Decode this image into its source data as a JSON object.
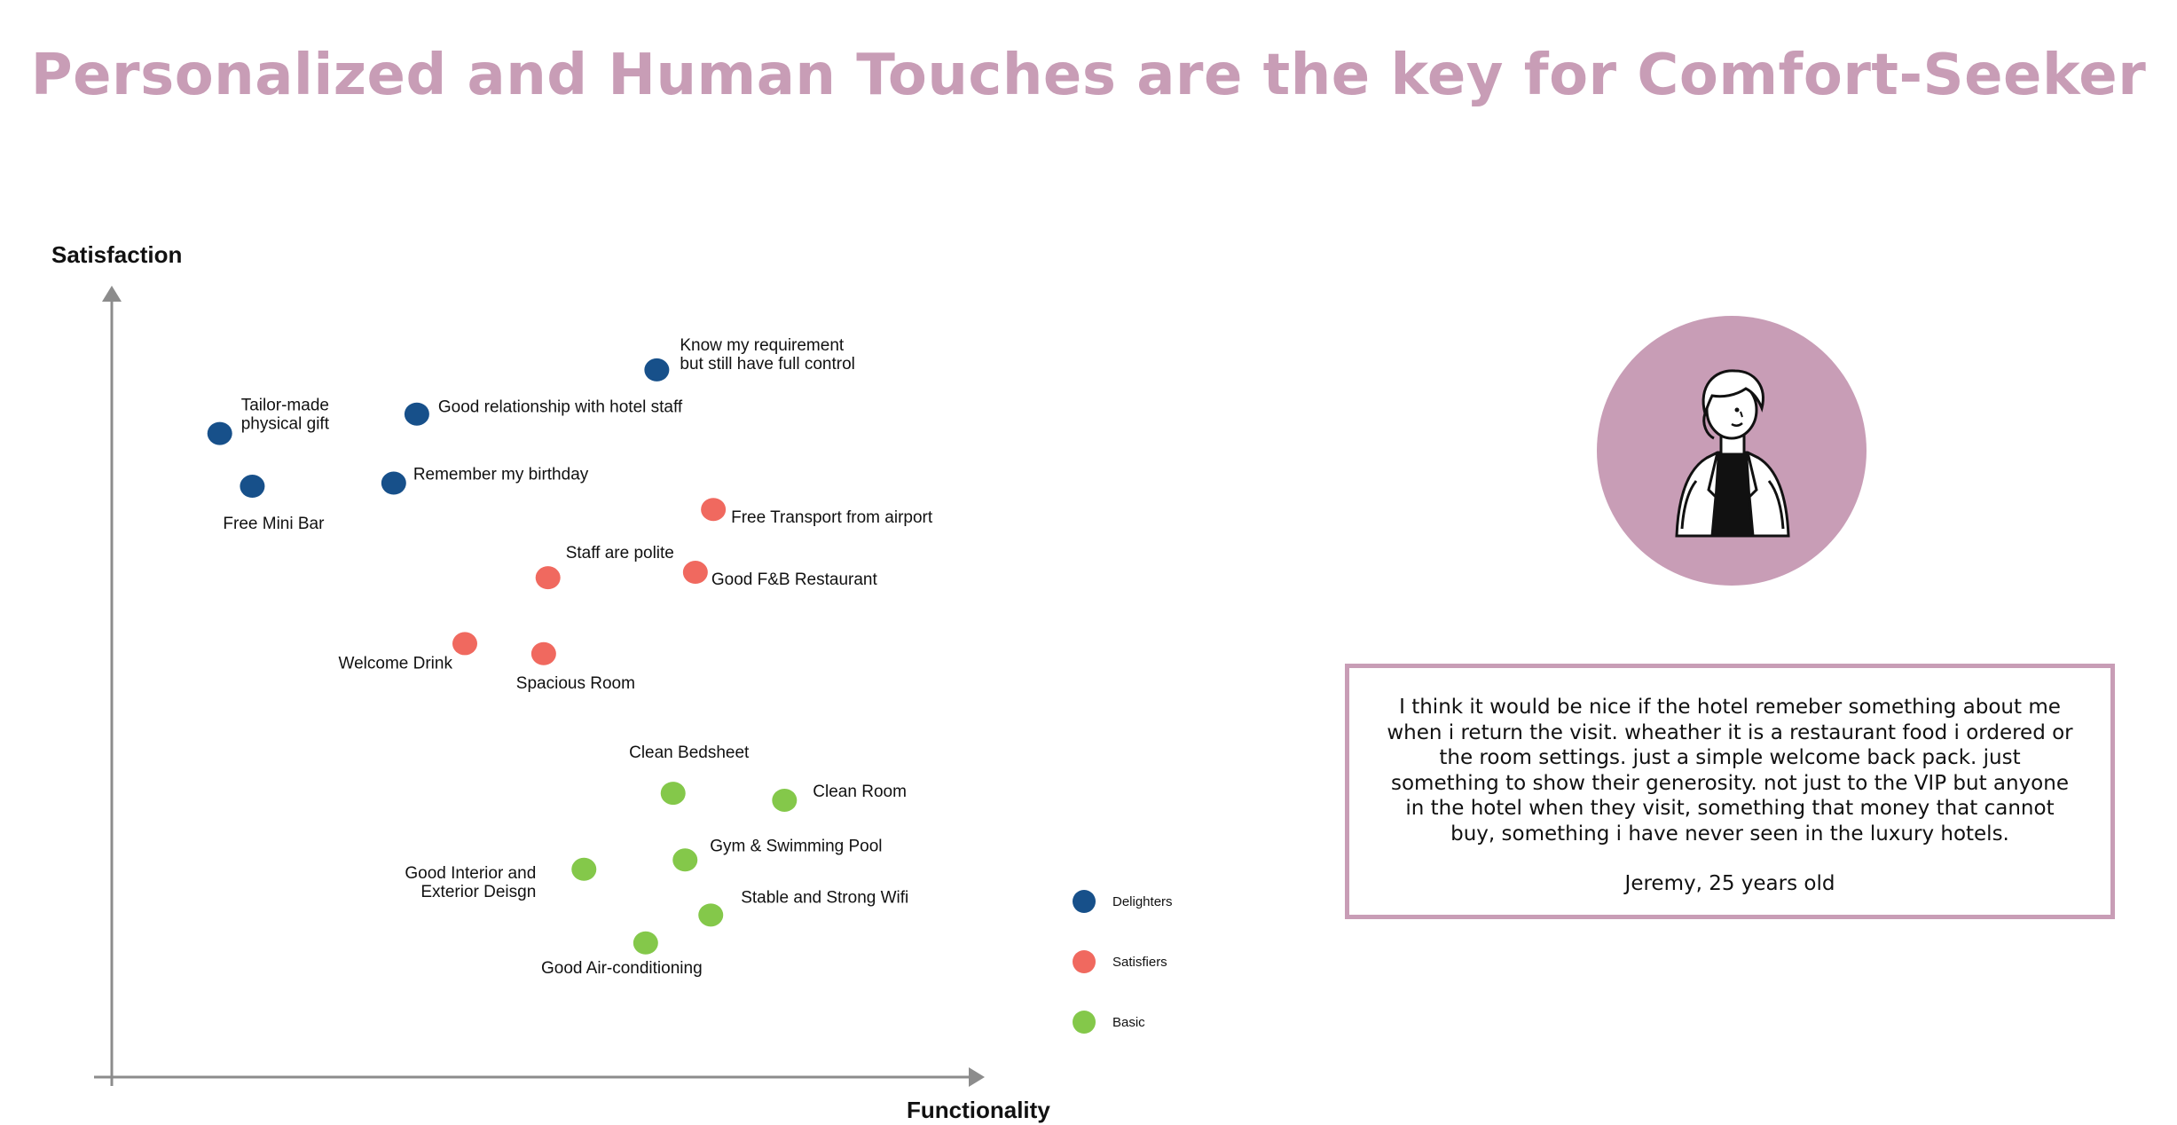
{
  "title": "Personalized and Human Touches are the key for Comfort-Seeker",
  "chart_data": {
    "type": "scatter",
    "title": "Personalized and Human Touches are the key for Comfort-Seeker",
    "xlabel": "Functionality",
    "ylabel": "Satisfaction",
    "xlim": [
      0,
      100
    ],
    "ylim": [
      0,
      100
    ],
    "grid": false,
    "legend_position": "bottom-right",
    "colors": {
      "Delighters": "#17508a",
      "Satisfiers": "#f0695f",
      "Basic": "#84c84a"
    },
    "legend": [
      "Delighters",
      "Satisfiers",
      "Basic"
    ],
    "points": [
      {
        "label": "Know my requirement\nbut still have full control",
        "category": "Delighters",
        "x": 63.6,
        "y": 91.2
      },
      {
        "label": "Tailor-made\nphysical gift",
        "category": "Delighters",
        "x": 12.6,
        "y": 83.0
      },
      {
        "label": "Good relationship with hotel staff",
        "category": "Delighters",
        "x": 35.6,
        "y": 85.5
      },
      {
        "label": "Free Mini Bar",
        "category": "Delighters",
        "x": 16.4,
        "y": 76.2
      },
      {
        "label": "Remember my birthday",
        "category": "Delighters",
        "x": 32.9,
        "y": 76.6
      },
      {
        "label": "Free Transport from airport",
        "category": "Satisfiers",
        "x": 70.2,
        "y": 73.2
      },
      {
        "label": "Staff are polite",
        "category": "Satisfiers",
        "x": 50.9,
        "y": 64.4
      },
      {
        "label": "Good F&B Restaurant",
        "category": "Satisfiers",
        "x": 68.1,
        "y": 65.1
      },
      {
        "label": "Welcome Drink",
        "category": "Satisfiers",
        "x": 41.2,
        "y": 55.9
      },
      {
        "label": "Spacious Room",
        "category": "Satisfiers",
        "x": 50.4,
        "y": 54.6
      },
      {
        "label": "Clean Bedsheet",
        "category": "Basic",
        "x": 65.5,
        "y": 36.6
      },
      {
        "label": "Clean Room",
        "category": "Basic",
        "x": 78.5,
        "y": 35.7
      },
      {
        "label": "Gym & Swimming Pool",
        "category": "Basic",
        "x": 66.9,
        "y": 28.0
      },
      {
        "label": "Good Interior and\nExterior Deisgn",
        "category": "Basic",
        "x": 55.1,
        "y": 26.8
      },
      {
        "label": "Stable and Strong Wifi",
        "category": "Basic",
        "x": 69.9,
        "y": 20.9
      },
      {
        "label": "Good Air-conditioning",
        "category": "Basic",
        "x": 62.3,
        "y": 17.3
      }
    ]
  },
  "persona": {
    "icon": "person-avatar-icon",
    "quote": "I think it would be nice if the hotel remeber something about me when i return the visit. wheather it is a restaurant food i ordered or the room settings. just a simple welcome back pack. just something to show their generosity. not just to the VIP but anyone in the hotel when they visit, something that money that cannot buy, something i have never seen in the luxury hotels.",
    "author": "Jeremy, 25 years old"
  }
}
